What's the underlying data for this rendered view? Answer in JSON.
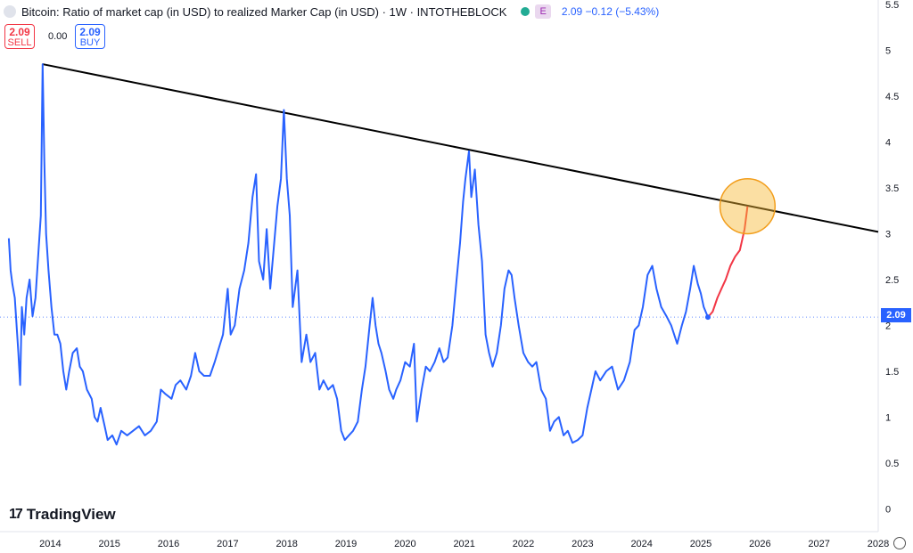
{
  "header": {
    "title": "Bitcoin: Ratio of market cap (in USD) to realized Marker Cap (in USD) · 1W · INTOTHEBLOCK",
    "indicator_badge": "E",
    "values": "2.09 −0.12 (−5.43%)"
  },
  "trade": {
    "sell_price": "2.09",
    "sell_label": "SELL",
    "spread": "0.00",
    "buy_price": "2.09",
    "buy_label": "BUY"
  },
  "brand": {
    "name": "TradingView"
  },
  "colors": {
    "series": "#2962ff",
    "projection": "#f23645",
    "trendline": "#000000",
    "highlight_fill": "#f7b733",
    "price_tag": "#2962ff"
  },
  "chart_data": {
    "type": "line",
    "title": "Bitcoin: Ratio of market cap (in USD) to realized Marker Cap (in USD)",
    "xlabel": "",
    "ylabel": "",
    "x_range": [
      2013.15,
      2028.0
    ],
    "ylim": [
      -0.25,
      5.55
    ],
    "x_ticks": [
      2014,
      2015,
      2016,
      2017,
      2018,
      2019,
      2020,
      2021,
      2022,
      2023,
      2024,
      2025,
      2026,
      2027,
      2028
    ],
    "x_tick_labels": [
      "2014",
      "2015",
      "2016",
      "2017",
      "2018",
      "2019",
      "2020",
      "2021",
      "2022",
      "2023",
      "2024",
      "2025",
      "2026",
      "2027",
      "2028"
    ],
    "y_ticks": [
      0,
      0.5,
      1,
      1.5,
      2,
      2.5,
      3,
      3.5,
      4,
      4.5,
      5,
      5.5
    ],
    "y_tick_labels": [
      "0",
      "0.5",
      "1",
      "1.5",
      "2",
      "2.5",
      "3",
      "3.5",
      "4",
      "4.5",
      "5",
      "5.5"
    ],
    "last_price": 2.09,
    "last_price_label": "2.09",
    "series": [
      {
        "values": [
          [
            2013.3,
            2.95
          ],
          [
            2013.33,
            2.6
          ],
          [
            2013.36,
            2.45
          ],
          [
            2013.4,
            2.3
          ],
          [
            2013.43,
            2.0
          ],
          [
            2013.46,
            1.7
          ],
          [
            2013.49,
            1.35
          ],
          [
            2013.52,
            2.2
          ],
          [
            2013.56,
            1.9
          ],
          [
            2013.6,
            2.3
          ],
          [
            2013.65,
            2.5
          ],
          [
            2013.7,
            2.1
          ],
          [
            2013.75,
            2.3
          ],
          [
            2013.8,
            2.8
          ],
          [
            2013.84,
            3.2
          ],
          [
            2013.87,
            4.85
          ],
          [
            2013.9,
            3.8
          ],
          [
            2013.93,
            3.0
          ],
          [
            2013.97,
            2.6
          ],
          [
            2014.02,
            2.2
          ],
          [
            2014.07,
            1.9
          ],
          [
            2014.12,
            1.9
          ],
          [
            2014.17,
            1.8
          ],
          [
            2014.22,
            1.5
          ],
          [
            2014.27,
            1.3
          ],
          [
            2014.32,
            1.5
          ],
          [
            2014.38,
            1.7
          ],
          [
            2014.45,
            1.75
          ],
          [
            2014.5,
            1.55
          ],
          [
            2014.55,
            1.5
          ],
          [
            2014.62,
            1.3
          ],
          [
            2014.7,
            1.2
          ],
          [
            2014.75,
            1.0
          ],
          [
            2014.8,
            0.95
          ],
          [
            2014.85,
            1.1
          ],
          [
            2014.92,
            0.9
          ],
          [
            2014.97,
            0.75
          ],
          [
            2015.05,
            0.8
          ],
          [
            2015.12,
            0.7
          ],
          [
            2015.2,
            0.85
          ],
          [
            2015.3,
            0.8
          ],
          [
            2015.4,
            0.85
          ],
          [
            2015.5,
            0.9
          ],
          [
            2015.6,
            0.8
          ],
          [
            2015.7,
            0.85
          ],
          [
            2015.8,
            0.95
          ],
          [
            2015.87,
            1.3
          ],
          [
            2015.95,
            1.25
          ],
          [
            2016.05,
            1.2
          ],
          [
            2016.12,
            1.35
          ],
          [
            2016.2,
            1.4
          ],
          [
            2016.3,
            1.3
          ],
          [
            2016.38,
            1.45
          ],
          [
            2016.45,
            1.7
          ],
          [
            2016.52,
            1.5
          ],
          [
            2016.6,
            1.45
          ],
          [
            2016.7,
            1.45
          ],
          [
            2016.78,
            1.6
          ],
          [
            2016.85,
            1.75
          ],
          [
            2016.92,
            1.9
          ],
          [
            2017.0,
            2.4
          ],
          [
            2017.05,
            1.9
          ],
          [
            2017.12,
            2.0
          ],
          [
            2017.2,
            2.4
          ],
          [
            2017.28,
            2.6
          ],
          [
            2017.35,
            2.9
          ],
          [
            2017.42,
            3.4
          ],
          [
            2017.48,
            3.65
          ],
          [
            2017.53,
            2.7
          ],
          [
            2017.6,
            2.5
          ],
          [
            2017.66,
            3.05
          ],
          [
            2017.72,
            2.4
          ],
          [
            2017.78,
            2.85
          ],
          [
            2017.84,
            3.3
          ],
          [
            2017.9,
            3.6
          ],
          [
            2017.95,
            4.35
          ],
          [
            2018.0,
            3.6
          ],
          [
            2018.05,
            3.2
          ],
          [
            2018.1,
            2.2
          ],
          [
            2018.18,
            2.6
          ],
          [
            2018.25,
            1.6
          ],
          [
            2018.33,
            1.9
          ],
          [
            2018.4,
            1.6
          ],
          [
            2018.48,
            1.7
          ],
          [
            2018.55,
            1.3
          ],
          [
            2018.62,
            1.4
          ],
          [
            2018.7,
            1.3
          ],
          [
            2018.78,
            1.35
          ],
          [
            2018.85,
            1.2
          ],
          [
            2018.92,
            0.85
          ],
          [
            2018.98,
            0.75
          ],
          [
            2019.05,
            0.8
          ],
          [
            2019.12,
            0.85
          ],
          [
            2019.2,
            0.95
          ],
          [
            2019.27,
            1.3
          ],
          [
            2019.33,
            1.55
          ],
          [
            2019.4,
            2.0
          ],
          [
            2019.45,
            2.3
          ],
          [
            2019.5,
            2.0
          ],
          [
            2019.55,
            1.8
          ],
          [
            2019.6,
            1.7
          ],
          [
            2019.67,
            1.5
          ],
          [
            2019.73,
            1.3
          ],
          [
            2019.8,
            1.2
          ],
          [
            2019.85,
            1.3
          ],
          [
            2019.92,
            1.4
          ],
          [
            2020.0,
            1.6
          ],
          [
            2020.08,
            1.55
          ],
          [
            2020.15,
            1.8
          ],
          [
            2020.2,
            0.95
          ],
          [
            2020.28,
            1.3
          ],
          [
            2020.35,
            1.55
          ],
          [
            2020.42,
            1.5
          ],
          [
            2020.5,
            1.6
          ],
          [
            2020.58,
            1.75
          ],
          [
            2020.65,
            1.6
          ],
          [
            2020.72,
            1.65
          ],
          [
            2020.8,
            2.0
          ],
          [
            2020.87,
            2.5
          ],
          [
            2020.93,
            2.9
          ],
          [
            2020.98,
            3.35
          ],
          [
            2021.02,
            3.6
          ],
          [
            2021.08,
            3.9
          ],
          [
            2021.12,
            3.4
          ],
          [
            2021.18,
            3.7
          ],
          [
            2021.24,
            3.1
          ],
          [
            2021.3,
            2.7
          ],
          [
            2021.36,
            1.9
          ],
          [
            2021.42,
            1.7
          ],
          [
            2021.48,
            1.55
          ],
          [
            2021.55,
            1.7
          ],
          [
            2021.62,
            2.0
          ],
          [
            2021.68,
            2.4
          ],
          [
            2021.75,
            2.6
          ],
          [
            2021.8,
            2.55
          ],
          [
            2021.85,
            2.3
          ],
          [
            2021.92,
            2.0
          ],
          [
            2022.0,
            1.7
          ],
          [
            2022.08,
            1.6
          ],
          [
            2022.15,
            1.55
          ],
          [
            2022.22,
            1.6
          ],
          [
            2022.3,
            1.3
          ],
          [
            2022.38,
            1.2
          ],
          [
            2022.45,
            0.85
          ],
          [
            2022.52,
            0.95
          ],
          [
            2022.6,
            1.0
          ],
          [
            2022.68,
            0.8
          ],
          [
            2022.75,
            0.85
          ],
          [
            2022.83,
            0.72
          ],
          [
            2022.92,
            0.75
          ],
          [
            2023.0,
            0.8
          ],
          [
            2023.08,
            1.1
          ],
          [
            2023.15,
            1.3
          ],
          [
            2023.22,
            1.5
          ],
          [
            2023.3,
            1.4
          ],
          [
            2023.4,
            1.5
          ],
          [
            2023.5,
            1.55
          ],
          [
            2023.6,
            1.3
          ],
          [
            2023.7,
            1.4
          ],
          [
            2023.8,
            1.6
          ],
          [
            2023.88,
            1.95
          ],
          [
            2023.95,
            2.0
          ],
          [
            2024.02,
            2.2
          ],
          [
            2024.1,
            2.55
          ],
          [
            2024.18,
            2.65
          ],
          [
            2024.25,
            2.4
          ],
          [
            2024.33,
            2.2
          ],
          [
            2024.42,
            2.1
          ],
          [
            2024.5,
            2.0
          ],
          [
            2024.6,
            1.8
          ],
          [
            2024.68,
            2.0
          ],
          [
            2024.75,
            2.15
          ],
          [
            2024.82,
            2.4
          ],
          [
            2024.88,
            2.65
          ],
          [
            2024.95,
            2.45
          ],
          [
            2025.0,
            2.35
          ],
          [
            2025.05,
            2.2
          ],
          [
            2025.12,
            2.09
          ]
        ]
      },
      {
        "values": [
          [
            2025.12,
            2.09
          ],
          [
            2025.2,
            2.15
          ],
          [
            2025.28,
            2.3
          ],
          [
            2025.35,
            2.4
          ],
          [
            2025.42,
            2.5
          ],
          [
            2025.5,
            2.65
          ],
          [
            2025.58,
            2.75
          ],
          [
            2025.66,
            2.82
          ],
          [
            2025.74,
            3.05
          ],
          [
            2025.79,
            3.3
          ]
        ]
      }
    ],
    "trendline": {
      "from": [
        2013.87,
        4.85
      ],
      "to": [
        2028.0,
        3.02
      ]
    },
    "highlight": {
      "center": [
        2025.79,
        3.3
      ],
      "radius_y": 0.3
    }
  }
}
